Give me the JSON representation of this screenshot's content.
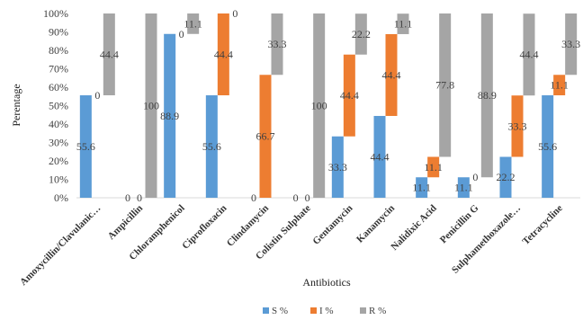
{
  "chart_data": {
    "type": "bar",
    "stacked": true,
    "title": "",
    "xlabel": "Antibiotics",
    "ylabel": "Perentage",
    "ylim": [
      0,
      100
    ],
    "y_ticks": [
      "0%",
      "10%",
      "20%",
      "30%",
      "40%",
      "50%",
      "60%",
      "70%",
      "80%",
      "90%",
      "100%"
    ],
    "grid": false,
    "legend_position": "bottom",
    "categories": [
      "Amoxycillin/Clavulanic…",
      "Ampicillin",
      "Chloramphenicol",
      "Ciprofloxacin",
      "Clindamycin",
      "Colistin Sulphate",
      "Gentamycin",
      "Kanamycin",
      "Nalidixic Acid",
      "Penicillin G",
      "Sulphamethoxazole…",
      "Tetracycline"
    ],
    "series": [
      {
        "name": "S %",
        "color": "#5b9bd5",
        "values": [
          55.6,
          0,
          88.9,
          55.6,
          0,
          0,
          33.3,
          44.4,
          11.1,
          11.1,
          22.2,
          55.6
        ],
        "labels": [
          "55.6",
          "0",
          "88.9",
          "55.6",
          "0",
          "0",
          "33.3",
          "44.4",
          "11.1",
          "11.1",
          "22.2",
          "55.6"
        ]
      },
      {
        "name": "I %",
        "color": "#ed7d31",
        "values": [
          0,
          0,
          0,
          44.4,
          66.7,
          0,
          44.4,
          44.4,
          11.1,
          0,
          33.3,
          11.1
        ],
        "labels": [
          "0",
          "0",
          "0",
          "44.4",
          "66.7",
          "0",
          "44.4",
          "44.4",
          "11.1",
          "0",
          "33.3",
          "11.1"
        ]
      },
      {
        "name": "R %",
        "color": "#a5a5a5",
        "values": [
          44.4,
          100,
          11.1,
          0,
          33.3,
          100,
          22.2,
          11.1,
          77.8,
          88.9,
          44.4,
          33.3
        ],
        "labels": [
          "44.4",
          "100",
          "11.1",
          "0",
          "33.3",
          "100",
          "22.2",
          "11.1",
          "77.8",
          "88.9",
          "44.4",
          "33.3"
        ]
      }
    ]
  }
}
